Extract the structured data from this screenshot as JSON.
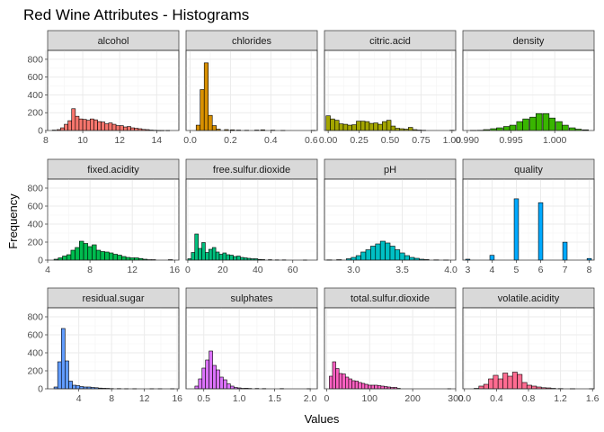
{
  "chart_data": {
    "type": "histogram-facets",
    "title": "Red Wine Attributes - Histograms",
    "xlabel": "Values",
    "ylabel": "Frequency",
    "facet_scales": "free_x",
    "ylim": [
      0,
      900
    ],
    "y_ticks": [
      0,
      200,
      400,
      600,
      800
    ],
    "grid": true,
    "panels": [
      {
        "name": "alcohol",
        "color": "#F8766D",
        "xlim": [
          8.1,
          15.2
        ],
        "x_ticks": [
          8,
          10,
          12,
          14
        ],
        "bins": [
          [
            8.45,
            5
          ],
          [
            8.7,
            10
          ],
          [
            8.9,
            30
          ],
          [
            9.1,
            70
          ],
          [
            9.3,
            110
          ],
          [
            9.5,
            245
          ],
          [
            9.7,
            160
          ],
          [
            9.9,
            130
          ],
          [
            10.1,
            125
          ],
          [
            10.3,
            115
          ],
          [
            10.5,
            130
          ],
          [
            10.7,
            120
          ],
          [
            10.9,
            100
          ],
          [
            11.1,
            95
          ],
          [
            11.3,
            75
          ],
          [
            11.5,
            85
          ],
          [
            11.7,
            70
          ],
          [
            11.9,
            55
          ],
          [
            12.1,
            55
          ],
          [
            12.3,
            40
          ],
          [
            12.5,
            45
          ],
          [
            12.7,
            30
          ],
          [
            12.9,
            25
          ],
          [
            13.1,
            20
          ],
          [
            13.3,
            12
          ],
          [
            13.5,
            10
          ],
          [
            13.7,
            5
          ],
          [
            13.9,
            3
          ],
          [
            14.1,
            1
          ],
          [
            14.3,
            1
          ],
          [
            14.6,
            1
          ]
        ]
      },
      {
        "name": "chlorides",
        "color": "#D89000",
        "xlim": [
          -0.02,
          0.63
        ],
        "x_ticks": [
          0.0,
          0.2,
          0.4,
          0.6
        ],
        "bins": [
          [
            0.04,
            60
          ],
          [
            0.06,
            460
          ],
          [
            0.08,
            760
          ],
          [
            0.1,
            170
          ],
          [
            0.12,
            55
          ],
          [
            0.14,
            15
          ],
          [
            0.18,
            10
          ],
          [
            0.21,
            8
          ],
          [
            0.24,
            5
          ],
          [
            0.28,
            3
          ],
          [
            0.33,
            5
          ],
          [
            0.36,
            8
          ],
          [
            0.41,
            4
          ],
          [
            0.46,
            2
          ],
          [
            0.61,
            2
          ]
        ]
      },
      {
        "name": "citric.acid",
        "color": "#A3A500",
        "xlim": [
          -0.03,
          1.03
        ],
        "x_ticks": [
          0.0,
          0.25,
          0.5,
          0.75,
          1.0
        ],
        "bins": [
          [
            0.0,
            165
          ],
          [
            0.035,
            130
          ],
          [
            0.07,
            115
          ],
          [
            0.105,
            75
          ],
          [
            0.14,
            70
          ],
          [
            0.175,
            60
          ],
          [
            0.21,
            65
          ],
          [
            0.245,
            105
          ],
          [
            0.28,
            105
          ],
          [
            0.315,
            100
          ],
          [
            0.35,
            80
          ],
          [
            0.385,
            85
          ],
          [
            0.42,
            70
          ],
          [
            0.455,
            100
          ],
          [
            0.49,
            115
          ],
          [
            0.525,
            50
          ],
          [
            0.56,
            25
          ],
          [
            0.595,
            20
          ],
          [
            0.63,
            15
          ],
          [
            0.665,
            35
          ],
          [
            0.7,
            10
          ],
          [
            0.735,
            5
          ],
          [
            0.77,
            3
          ],
          [
            1.0,
            3
          ]
        ]
      },
      {
        "name": "density",
        "color": "#39B600",
        "xlim": [
          0.9895,
          1.0045
        ],
        "x_ticks": [
          0.99,
          0.995,
          1.0
        ],
        "bins": [
          [
            0.9907,
            2
          ],
          [
            0.9915,
            3
          ],
          [
            0.9922,
            10
          ],
          [
            0.993,
            20
          ],
          [
            0.9937,
            30
          ],
          [
            0.9945,
            45
          ],
          [
            0.9952,
            60
          ],
          [
            0.996,
            100
          ],
          [
            0.9967,
            130
          ],
          [
            0.9975,
            150
          ],
          [
            0.9982,
            190
          ],
          [
            0.999,
            190
          ],
          [
            0.9997,
            140
          ],
          [
            1.0005,
            100
          ],
          [
            1.0012,
            60
          ],
          [
            1.002,
            30
          ],
          [
            1.0027,
            15
          ],
          [
            1.0035,
            8
          ]
        ]
      },
      {
        "name": "fixed.acidity",
        "color": "#00BB4E",
        "xlim": [
          4.0,
          16.4
        ],
        "x_ticks": [
          4,
          8,
          12,
          16
        ],
        "bins": [
          [
            4.8,
            10
          ],
          [
            5.2,
            25
          ],
          [
            5.6,
            45
          ],
          [
            6.0,
            60
          ],
          [
            6.4,
            110
          ],
          [
            6.8,
            140
          ],
          [
            7.2,
            210
          ],
          [
            7.6,
            185
          ],
          [
            8.0,
            150
          ],
          [
            8.4,
            170
          ],
          [
            8.8,
            110
          ],
          [
            9.2,
            95
          ],
          [
            9.6,
            90
          ],
          [
            10.0,
            80
          ],
          [
            10.4,
            65
          ],
          [
            10.8,
            55
          ],
          [
            11.2,
            40
          ],
          [
            11.6,
            30
          ],
          [
            12.0,
            25
          ],
          [
            12.4,
            25
          ],
          [
            12.8,
            18
          ],
          [
            13.2,
            10
          ],
          [
            13.6,
            5
          ],
          [
            14.0,
            5
          ],
          [
            15.6,
            5
          ]
        ]
      },
      {
        "name": "free.sulfur.dioxide",
        "color": "#00BF7D",
        "xlim": [
          -1,
          74
        ],
        "x_ticks": [
          0,
          20,
          40,
          60
        ],
        "bins": [
          [
            1,
            15
          ],
          [
            3,
            85
          ],
          [
            5,
            290
          ],
          [
            7,
            130
          ],
          [
            9,
            195
          ],
          [
            11,
            85
          ],
          [
            13,
            120
          ],
          [
            15,
            140
          ],
          [
            17,
            90
          ],
          [
            19,
            65
          ],
          [
            21,
            80
          ],
          [
            23,
            60
          ],
          [
            25,
            55
          ],
          [
            27,
            40
          ],
          [
            29,
            45
          ],
          [
            31,
            30
          ],
          [
            33,
            25
          ],
          [
            35,
            20
          ],
          [
            37,
            15
          ],
          [
            39,
            15
          ],
          [
            41,
            8
          ],
          [
            43,
            6
          ],
          [
            47,
            5
          ],
          [
            51,
            3
          ],
          [
            55,
            3
          ],
          [
            67,
            2
          ]
        ]
      },
      {
        "name": "pH",
        "color": "#00BFC4",
        "xlim": [
          2.7,
          4.05
        ],
        "x_ticks": [
          3.0,
          3.5,
          4.0
        ],
        "bins": [
          [
            2.75,
            3
          ],
          [
            2.85,
            5
          ],
          [
            2.95,
            15
          ],
          [
            3.0,
            30
          ],
          [
            3.05,
            50
          ],
          [
            3.1,
            90
          ],
          [
            3.15,
            115
          ],
          [
            3.2,
            155
          ],
          [
            3.25,
            180
          ],
          [
            3.3,
            210
          ],
          [
            3.35,
            190
          ],
          [
            3.4,
            155
          ],
          [
            3.45,
            115
          ],
          [
            3.5,
            80
          ],
          [
            3.55,
            50
          ],
          [
            3.6,
            30
          ],
          [
            3.65,
            20
          ],
          [
            3.7,
            10
          ],
          [
            3.75,
            6
          ],
          [
            3.85,
            3
          ],
          [
            3.95,
            2
          ]
        ]
      },
      {
        "name": "quality",
        "color": "#00A9FF",
        "xlim": [
          2.8,
          8.2
        ],
        "x_ticks": [
          3,
          4,
          5,
          6,
          7,
          8
        ],
        "bins": [
          [
            3,
            10
          ],
          [
            4,
            53
          ],
          [
            5,
            681
          ],
          [
            6,
            638
          ],
          [
            7,
            199
          ],
          [
            8,
            18
          ]
        ]
      },
      {
        "name": "residual.sugar",
        "color": "#619CFF",
        "xlim": [
          0.2,
          16.2
        ],
        "x_ticks": [
          4,
          8,
          12,
          16
        ],
        "bins": [
          [
            1.2,
            20
          ],
          [
            1.65,
            300
          ],
          [
            2.1,
            670
          ],
          [
            2.55,
            310
          ],
          [
            3.0,
            85
          ],
          [
            3.45,
            40
          ],
          [
            3.9,
            35
          ],
          [
            4.35,
            25
          ],
          [
            4.8,
            20
          ],
          [
            5.25,
            20
          ],
          [
            5.7,
            15
          ],
          [
            6.15,
            12
          ],
          [
            6.6,
            8
          ],
          [
            7.05,
            6
          ],
          [
            7.5,
            5
          ],
          [
            8.0,
            3
          ],
          [
            8.9,
            3
          ],
          [
            9.8,
            2
          ],
          [
            10.8,
            2
          ],
          [
            12.9,
            2
          ],
          [
            13.9,
            2
          ],
          [
            15.4,
            2
          ]
        ]
      },
      {
        "name": "sulphates",
        "color": "#DB72FB",
        "xlim": [
          0.25,
          2.1
        ],
        "x_ticks": [
          0.5,
          1.0,
          1.5,
          2.0
        ],
        "bins": [
          [
            0.4,
            30
          ],
          [
            0.45,
            110
          ],
          [
            0.5,
            230
          ],
          [
            0.55,
            320
          ],
          [
            0.6,
            420
          ],
          [
            0.65,
            260
          ],
          [
            0.7,
            210
          ],
          [
            0.75,
            130
          ],
          [
            0.8,
            100
          ],
          [
            0.85,
            55
          ],
          [
            0.9,
            30
          ],
          [
            0.95,
            15
          ],
          [
            1.0,
            10
          ],
          [
            1.05,
            5
          ],
          [
            1.1,
            6
          ],
          [
            1.15,
            4
          ],
          [
            1.25,
            4
          ],
          [
            1.35,
            3
          ],
          [
            1.6,
            3
          ],
          [
            1.98,
            2
          ]
        ]
      },
      {
        "name": "total.sulfur.dioxide",
        "color": "#FF61C3",
        "xlim": [
          -5,
          300
        ],
        "x_ticks": [
          0,
          100,
          200,
          300
        ],
        "bins": [
          [
            10,
            140
          ],
          [
            17.5,
            300
          ],
          [
            25,
            225
          ],
          [
            32.5,
            170
          ],
          [
            40,
            165
          ],
          [
            47.5,
            130
          ],
          [
            55,
            110
          ],
          [
            62.5,
            90
          ],
          [
            70,
            85
          ],
          [
            77.5,
            70
          ],
          [
            85,
            60
          ],
          [
            92.5,
            50
          ],
          [
            100,
            40
          ],
          [
            107.5,
            40
          ],
          [
            115,
            40
          ],
          [
            122.5,
            35
          ],
          [
            130,
            30
          ],
          [
            137.5,
            25
          ],
          [
            145,
            20
          ],
          [
            152.5,
            15
          ],
          [
            160,
            15
          ],
          [
            167.5,
            5
          ],
          [
            285,
            2
          ]
        ]
      },
      {
        "name": "volatile.acidity",
        "color": "#FF6C91",
        "xlim": [
          -0.02,
          1.62
        ],
        "x_ticks": [
          0.0,
          0.4,
          0.8,
          1.2,
          1.6
        ],
        "bins": [
          [
            0.15,
            5
          ],
          [
            0.21,
            30
          ],
          [
            0.27,
            50
          ],
          [
            0.33,
            110
          ],
          [
            0.39,
            150
          ],
          [
            0.45,
            110
          ],
          [
            0.51,
            175
          ],
          [
            0.57,
            140
          ],
          [
            0.63,
            185
          ],
          [
            0.69,
            160
          ],
          [
            0.75,
            70
          ],
          [
            0.81,
            40
          ],
          [
            0.87,
            30
          ],
          [
            0.93,
            20
          ],
          [
            0.99,
            12
          ],
          [
            1.05,
            10
          ],
          [
            1.11,
            5
          ],
          [
            1.2,
            3
          ],
          [
            1.35,
            2
          ],
          [
            1.59,
            2
          ]
        ]
      }
    ]
  }
}
